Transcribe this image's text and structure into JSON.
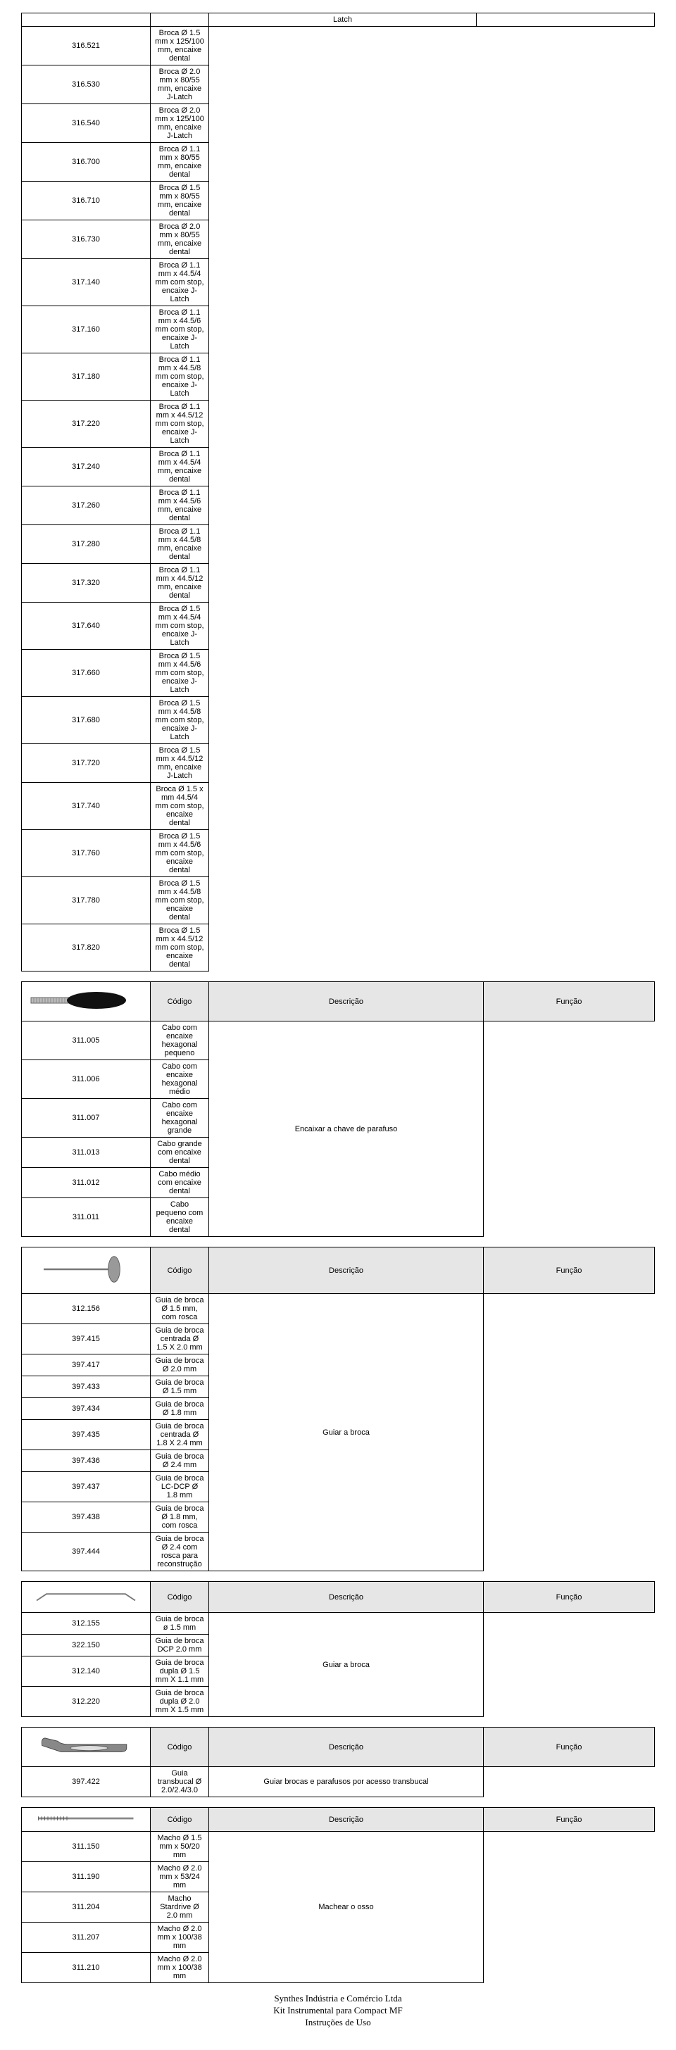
{
  "topTable": {
    "latchHeader": "Latch",
    "rows": [
      {
        "code": "316.521",
        "desc": "Broca Ø 1.5 mm x 125/100 mm, encaixe dental"
      },
      {
        "code": "316.530",
        "desc": "Broca Ø 2.0 mm x 80/55 mm, encaixe J-Latch"
      },
      {
        "code": "316.540",
        "desc": "Broca Ø 2.0 mm x 125/100 mm, encaixe J-Latch"
      },
      {
        "code": "316.700",
        "desc": "Broca Ø 1.1 mm x 80/55 mm, encaixe dental"
      },
      {
        "code": "316.710",
        "desc": "Broca Ø 1.5 mm x 80/55 mm, encaixe dental"
      },
      {
        "code": "316.730",
        "desc": "Broca Ø 2.0 mm x 80/55 mm, encaixe dental"
      },
      {
        "code": "317.140",
        "desc": "Broca Ø 1.1 mm x 44.5/4 mm com stop, encaixe J-Latch"
      },
      {
        "code": "317.160",
        "desc": "Broca Ø 1.1 mm x 44.5/6 mm com stop, encaixe J-Latch"
      },
      {
        "code": "317.180",
        "desc": "Broca Ø 1.1 mm x 44.5/8 mm com stop, encaixe J-Latch"
      },
      {
        "code": "317.220",
        "desc": "Broca Ø 1.1 mm x 44.5/12 mm com stop, encaixe J-Latch"
      },
      {
        "code": "317.240",
        "desc": "Broca Ø 1.1 mm x 44.5/4 mm, encaixe dental"
      },
      {
        "code": "317.260",
        "desc": "Broca Ø 1.1 mm x 44.5/6 mm, encaixe dental"
      },
      {
        "code": "317.280",
        "desc": "Broca Ø 1.1 mm x 44.5/8 mm, encaixe dental"
      },
      {
        "code": "317.320",
        "desc": "Broca Ø 1.1 mm x 44.5/12 mm, encaixe dental"
      },
      {
        "code": "317.640",
        "desc": "Broca Ø 1.5 mm x 44.5/4 mm com stop, encaixe J-Latch"
      },
      {
        "code": "317.660",
        "desc": "Broca Ø 1.5 mm x 44.5/6 mm com stop, encaixe J-Latch"
      },
      {
        "code": "317.680",
        "desc": "Broca Ø 1.5 mm x 44.5/8 mm com stop, encaixe J-Latch"
      },
      {
        "code": "317.720",
        "desc": "Broca Ø 1.5 mm x 44.5/12 mm, encaixe J-Latch"
      },
      {
        "code": "317.740",
        "desc": "Broca Ø 1.5 x mm 44.5/4 mm com stop, encaixe dental"
      },
      {
        "code": "317.760",
        "desc": "Broca Ø 1.5 mm x 44.5/6 mm com stop, encaixe dental"
      },
      {
        "code": "317.780",
        "desc": "Broca Ø 1.5 mm x 44.5/8 mm com stop, encaixe dental"
      },
      {
        "code": "317.820",
        "desc": "Broca Ø 1.5 mm x 44.5/12 mm com stop, encaixe dental"
      }
    ]
  },
  "headers": {
    "codigo": "Código",
    "descricao": "Descrição",
    "funcao": "Função"
  },
  "table2": {
    "rows": [
      {
        "code": "311.005",
        "desc": "Cabo com encaixe hexagonal pequeno"
      },
      {
        "code": "311.006",
        "desc": "Cabo com encaixe hexagonal médio"
      },
      {
        "code": "311.007",
        "desc": "Cabo com encaixe hexagonal grande"
      },
      {
        "code": "311.013",
        "desc": "Cabo grande com encaixe dental"
      },
      {
        "code": "311.012",
        "desc": "Cabo médio com encaixe dental"
      },
      {
        "code": "311.011",
        "desc": "Cabo pequeno com encaixe dental"
      }
    ],
    "func": "Encaixar a chave de parafuso"
  },
  "table3": {
    "rows": [
      {
        "code": "312.156",
        "desc": "Guia de broca Ø 1.5 mm, com rosca"
      },
      {
        "code": "397.415",
        "desc": "Guia de broca centrada Ø 1.5 X 2.0 mm"
      },
      {
        "code": "397.417",
        "desc": "Guia de broca Ø 2.0 mm"
      },
      {
        "code": "397.433",
        "desc": "Guia de broca Ø 1.5 mm"
      },
      {
        "code": "397.434",
        "desc": "Guia de broca Ø 1.8 mm"
      },
      {
        "code": "397.435",
        "desc": "Guia de broca centrada Ø 1.8 X 2.4 mm"
      },
      {
        "code": "397.436",
        "desc": "Guia de broca Ø 2.4 mm"
      },
      {
        "code": "397.437",
        "desc": "Guia de broca LC-DCP Ø 1.8 mm"
      },
      {
        "code": "397.438",
        "desc": "Guia de broca Ø 1.8 mm, com rosca"
      },
      {
        "code": "397.444",
        "desc": "Guia de broca Ø 2.4 com rosca para reconstrução"
      }
    ],
    "func": "Guiar a broca"
  },
  "table4": {
    "rows": [
      {
        "code": "312.155",
        "desc": "Guia de broca ø 1.5 mm"
      },
      {
        "code": "322.150",
        "desc": "Guia de broca DCP 2.0 mm"
      },
      {
        "code": "312.140",
        "desc": "Guia de broca dupla Ø 1.5 mm X 1.1 mm"
      },
      {
        "code": "312.220",
        "desc": "Guia de broca dupla Ø 2.0 mm X 1.5 mm"
      }
    ],
    "func": "Guiar a broca"
  },
  "table5": {
    "rows": [
      {
        "code": "397.422",
        "desc": "Guia transbucal Ø 2.0/2.4/3.0"
      }
    ],
    "func": "Guiar brocas e parafusos por acesso transbucal"
  },
  "table6": {
    "rows": [
      {
        "code": "311.150",
        "desc": "Macho Ø 1.5 mm x 50/20 mm"
      },
      {
        "code": "311.190",
        "desc": "Macho Ø 2.0 mm x 53/24 mm"
      },
      {
        "code": "311.204",
        "desc": "Macho Stardrive Ø 2.0 mm"
      },
      {
        "code": "311.207",
        "desc": "Macho Ø 2.0 mm x 100/38 mm"
      },
      {
        "code": "311.210",
        "desc": "Macho Ø 2.0 mm x 100/38 mm"
      }
    ],
    "func": "Machear o osso"
  },
  "footer": {
    "line1": "Synthes Indústria e Comércio Ltda",
    "line2": "Kit Instrumental para Compact MF",
    "line3": "Instruções de Uso"
  },
  "svgPlaceholders": {
    "handle": "tool-handle-icon",
    "pin": "drill-guide-pin-icon",
    "bar": "thin-guide-bar-icon",
    "clamp": "transbucal-guide-icon",
    "tap": "bone-tap-icon"
  }
}
